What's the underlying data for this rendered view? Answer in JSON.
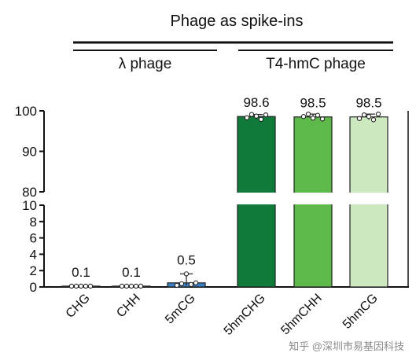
{
  "chart_data": {
    "type": "bar",
    "title": "Phage as spike-ins",
    "groups": [
      {
        "name": "λ phage",
        "categories": [
          "CHG",
          "CHH",
          "5mCG"
        ]
      },
      {
        "name": "T4-hmC phage",
        "categories": [
          "5hmCHG",
          "5hmCHH",
          "5hmCG"
        ]
      }
    ],
    "categories": [
      "CHG",
      "CHH",
      "5mCG",
      "5hmCHG",
      "5hmCHH",
      "5hmCG"
    ],
    "values": [
      0.1,
      0.1,
      0.5,
      98.6,
      98.5,
      98.5
    ],
    "value_labels": [
      "0.1",
      "0.1",
      "0.5",
      "98.6",
      "98.5",
      "98.5"
    ],
    "bar_colors": [
      "#a8a8a8",
      "#a8a8a8",
      "#3a7fc1",
      "#0f7a3a",
      "#5cb94a",
      "#cce8bf"
    ],
    "points": [
      [
        0.1,
        0.1,
        0.1,
        0.1,
        0.1
      ],
      [
        0.1,
        0.1,
        0.1,
        0.1,
        0.1
      ],
      [
        0.2,
        0.4,
        1.6,
        0.3,
        0.5
      ],
      [
        98.3,
        99.1,
        98.7,
        97.9,
        99.0
      ],
      [
        98.6,
        99.2,
        98.2,
        98.9,
        98.0
      ],
      [
        98.1,
        99.0,
        98.6,
        97.8,
        99.2
      ]
    ],
    "y_axis": {
      "broken": true,
      "lower_segment": {
        "ylim": [
          0,
          10
        ],
        "ticks": [
          0,
          2,
          4,
          6,
          8,
          10
        ]
      },
      "upper_segment": {
        "ylim": [
          80,
          100
        ],
        "ticks": [
          80,
          90,
          100
        ]
      }
    },
    "ylabel": "",
    "xlabel": "",
    "legend": "none",
    "grid": false
  },
  "watermark": "知乎 @深圳市易基因科技"
}
